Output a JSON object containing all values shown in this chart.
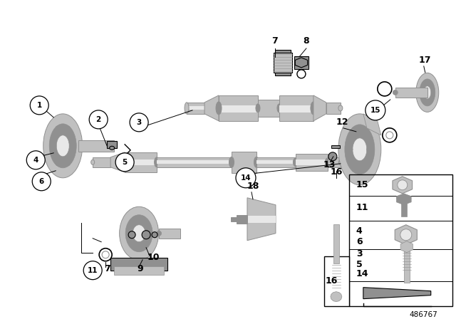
{
  "bg_color": "#ffffff",
  "line_color": "#000000",
  "gc": "#c0c0c0",
  "gd": "#909090",
  "gl": "#e8e8e8",
  "diagram_id": "486767",
  "figsize": [
    6.4,
    4.48
  ],
  "dpi": 100
}
